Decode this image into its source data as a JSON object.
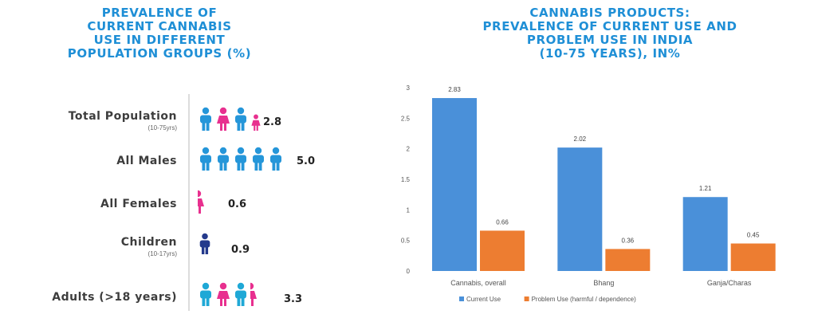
{
  "left_panel": {
    "title": "PREVALENCE OF\nCURRENT CANNABIS\nUSE IN DIFFERENT\nPOPULATION GROUPS (%)",
    "groups": [
      {
        "label": "Total Population",
        "sub": "(10-75yrs)",
        "value": "2.8",
        "icons": [
          "blue",
          "pink",
          "blue",
          "pink-small"
        ]
      },
      {
        "label": "All Males",
        "sub": "",
        "value": "5.0",
        "icons": [
          "blue",
          "blue",
          "blue",
          "blue",
          "blue"
        ]
      },
      {
        "label": "All Females",
        "sub": "",
        "value": "0.6",
        "icons": [
          "pink-half"
        ]
      },
      {
        "label": "Children",
        "sub": "(10-17yrs)",
        "value": "0.9",
        "icons": [
          "navy"
        ]
      },
      {
        "label": "Adults (>18 years)",
        "sub": "",
        "value": "3.3",
        "icons": [
          "cyan",
          "pink",
          "cyan",
          "pink-half"
        ]
      }
    ],
    "colors": {
      "male": "#2596d9",
      "female": "#e8308f",
      "child": "#243a8c",
      "cyan": "#1fa8d6"
    }
  },
  "chart_data": {
    "type": "bar",
    "title": "CANNABIS PRODUCTS:\nPREVALENCE OF CURRENT USE AND\nPROBLEM USE IN INDIA\n(10-75 YEARS), IN%",
    "categories": [
      "Cannabis, overall",
      "Bhang",
      "Ganja/Charas"
    ],
    "series": [
      {
        "name": "Current Use",
        "values": [
          2.83,
          2.02,
          1.21
        ],
        "labels": [
          "2.83",
          "2.02",
          "1.21"
        ],
        "color": "#4a90d9"
      },
      {
        "name": "Problem Use (harmful / dependence)",
        "values": [
          0.66,
          0.36,
          0.45
        ],
        "labels": [
          "0.66",
          "0.36",
          "0.45"
        ],
        "color": "#ed7d31"
      }
    ],
    "ylim": [
      0,
      3
    ],
    "yticks": [
      "0",
      "0.5",
      "1",
      "1.5",
      "2",
      "2.5",
      "3"
    ],
    "grid": false,
    "legend": "bottom"
  }
}
